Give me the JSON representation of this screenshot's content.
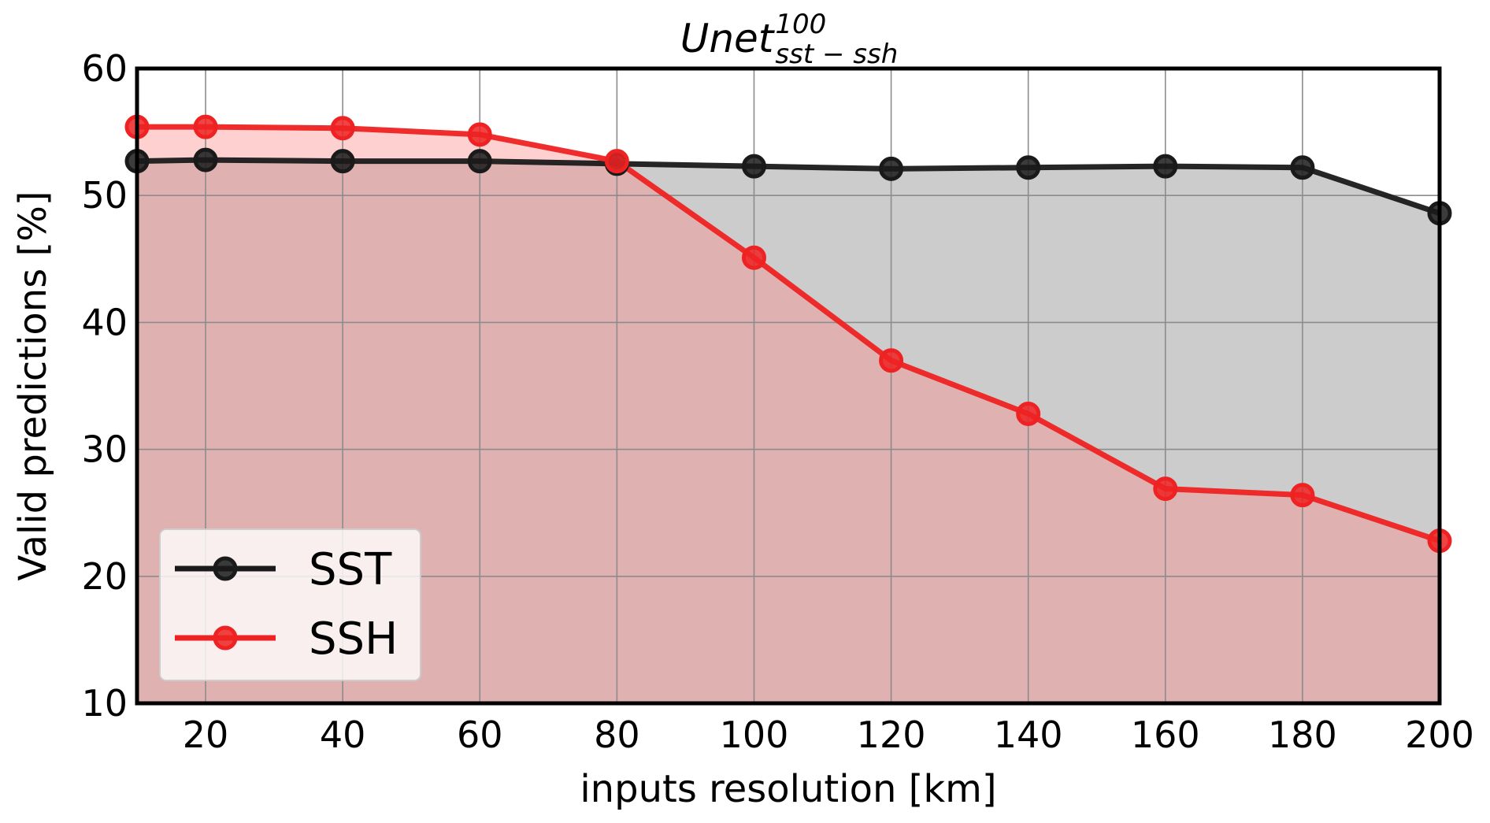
{
  "chart_data": {
    "type": "line",
    "title": {
      "base": "Unet",
      "superscript": "100",
      "subscript": "sst − ssh"
    },
    "xlabel": "inputs resolution [km]",
    "ylabel": "Valid predictions [%]",
    "xlim": [
      10,
      200
    ],
    "ylim": [
      10,
      60
    ],
    "xticks": [
      20,
      40,
      60,
      80,
      100,
      120,
      140,
      160,
      180,
      200
    ],
    "yticks": [
      10,
      20,
      30,
      40,
      50,
      60
    ],
    "grid": true,
    "legend_position": "lower-left",
    "x": [
      10,
      20,
      40,
      60,
      80,
      100,
      120,
      140,
      160,
      180,
      200
    ],
    "series": [
      {
        "name": "SST",
        "color": "#1a1a1a",
        "fill_color": "#aaaaaa",
        "values": [
          52.7,
          52.8,
          52.7,
          52.7,
          52.5,
          52.3,
          52.1,
          52.2,
          52.3,
          52.2,
          48.6
        ]
      },
      {
        "name": "SSH",
        "color": "#ee2222",
        "fill_color": "#ff8a8a",
        "values": [
          55.4,
          55.4,
          55.3,
          54.8,
          52.7,
          45.1,
          37.0,
          32.8,
          26.9,
          26.4,
          22.8
        ]
      }
    ]
  }
}
